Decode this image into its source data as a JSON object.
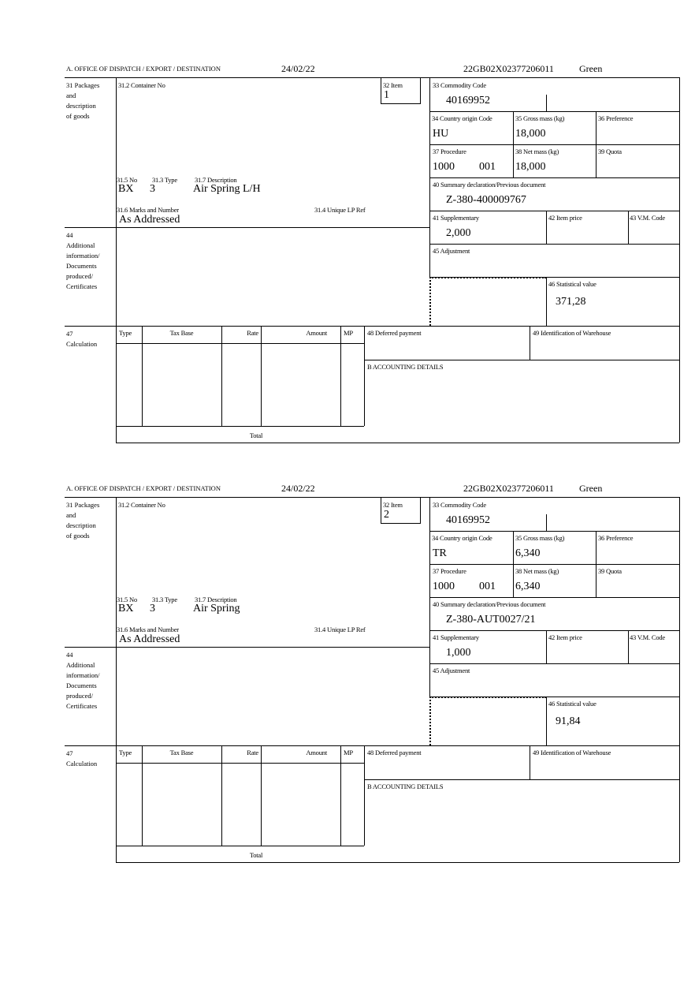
{
  "labels": {
    "office": "A.  OFFICE OF DISPATCH / EXPORT / DESTINATION",
    "box31": "31 Packages\nand\ndescription\nof goods",
    "box31_2": "31.2 Container No",
    "box32": "32 Item",
    "box33": "33 Commodity Code",
    "box34": "34 Country origin Code",
    "box35": "35 Gross mass (kg)",
    "box36": "36 Preference",
    "box37": "37 Procedure",
    "box38": "38 Net mass (kg)",
    "box39": "39 Quota",
    "box40": "40 Summary declaration/Previous document",
    "box31_5": "31.5 No",
    "box31_3": "31.3 Type",
    "box31_7": "31.7 Description",
    "box31_6": "31.6 Marks and Number",
    "box31_4": "31.4 Unique LP Ref",
    "box41": "41 Supplementary",
    "box42": "42 Item price",
    "box43": "43 V.M. Code",
    "box44": "44\nAdditional\ninformation/\nDocuments\nproduced/\nCertificates",
    "box45": "45 Adjustment",
    "box46": "46 Statistical value",
    "box47": "47\nCalculation",
    "calc_type": "Type",
    "calc_taxbase": "Tax Base",
    "calc_rate": "Rate",
    "calc_amount": "Amount",
    "calc_mp": "MP",
    "calc_total": "Total",
    "box48": "48 Deferred payment",
    "box49": "49 Identification of Warehouse",
    "boxB": "B ACCOUNTING DETAILS"
  },
  "forms": [
    {
      "date": "24/02/22",
      "reference": "22GB02X02377206011",
      "route": "Green",
      "item": "1",
      "commodity_code": "40169952",
      "country_origin": "HU",
      "gross_mass": "18,000",
      "procedure": "1000",
      "procedure_additional": "001",
      "net_mass": "18,000",
      "previous_document": "Z-380-400009767",
      "package_kind": "BX",
      "package_count": "3",
      "description": "Air Spring L/H",
      "marks": "As Addressed",
      "supplementary": "2,000",
      "statistical_value": "371,28"
    },
    {
      "date": "24/02/22",
      "reference": "22GB02X02377206011",
      "route": "Green",
      "item": "2",
      "commodity_code": "40169952",
      "country_origin": "TR",
      "gross_mass": "6,340",
      "procedure": "1000",
      "procedure_additional": "001",
      "net_mass": "6,340",
      "previous_document": "Z-380-AUT0027/21",
      "package_kind": "BX",
      "package_count": "3",
      "description": "Air Spring",
      "marks": "As Addressed",
      "supplementary": "1,000",
      "statistical_value": "91,84"
    }
  ]
}
